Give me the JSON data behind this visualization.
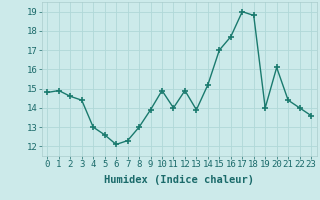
{
  "xlabel": "Humidex (Indice chaleur)",
  "x": [
    0,
    1,
    2,
    3,
    4,
    5,
    6,
    7,
    8,
    9,
    10,
    11,
    12,
    13,
    14,
    15,
    16,
    17,
    18,
    19,
    20,
    21,
    22,
    23
  ],
  "y": [
    14.8,
    14.9,
    14.6,
    14.4,
    13.0,
    12.6,
    12.1,
    12.3,
    13.0,
    13.9,
    14.9,
    14.0,
    14.9,
    13.9,
    15.2,
    17.0,
    17.7,
    19.0,
    18.8,
    14.0,
    16.1,
    14.4,
    14.0,
    13.6
  ],
  "line_color": "#1a7a6e",
  "marker": "+",
  "marker_size": 4,
  "bg_color": "#cceaea",
  "grid_color": "#b0d8d8",
  "ylim": [
    11.5,
    19.5
  ],
  "xlim": [
    -0.5,
    23.5
  ],
  "yticks": [
    12,
    13,
    14,
    15,
    16,
    17,
    18,
    19
  ],
  "xticks": [
    0,
    1,
    2,
    3,
    4,
    5,
    6,
    7,
    8,
    9,
    10,
    11,
    12,
    13,
    14,
    15,
    16,
    17,
    18,
    19,
    20,
    21,
    22,
    23
  ],
  "xlabel_fontsize": 7.5,
  "tick_fontsize": 6.5,
  "line_width": 1.0
}
